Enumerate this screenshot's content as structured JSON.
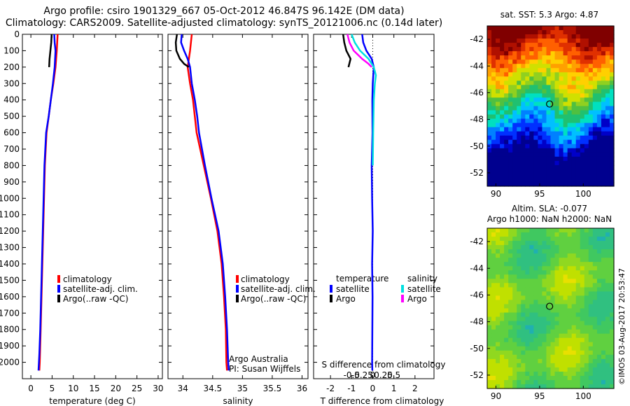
{
  "header": {
    "title_line1": "Argo profile: csiro 1901329_667 05-Oct-2012 46.847S 96.142E (DM data)",
    "title_line2": "Climatology: CARS2009. Satellite-adjusted climatology: synTS_20121006.nc (0.14d later)"
  },
  "colors": {
    "climatology": "#ff0000",
    "satellite": "#0000ff",
    "argo": "#000000",
    "sal_satellite": "#00e0e0",
    "sal_argo": "#ff00ff"
  },
  "chart_data": [
    {
      "type": "line",
      "xlabel": "temperature (deg C)",
      "xlim": [
        -2,
        31
      ],
      "ylim": [
        2100,
        0
      ],
      "x_ticks": [
        "0",
        "5",
        "10",
        "15",
        "20",
        "25",
        "30"
      ],
      "y_ticks": [
        "0",
        "100",
        "200",
        "300",
        "400",
        "500",
        "600",
        "700",
        "800",
        "900",
        "1000",
        "1100",
        "1200",
        "1300",
        "1400",
        "1500",
        "1600",
        "1700",
        "1800",
        "1900",
        "2000"
      ],
      "legend": [
        "climatology",
        "satellite-adj. clim.",
        "Argo(..raw -QC)"
      ],
      "series": [
        {
          "name": "climatology",
          "color": "#ff0000",
          "depth": [
            0,
            50,
            100,
            200,
            300,
            400,
            500,
            600,
            700,
            800,
            1000,
            1200,
            1400,
            1600,
            1800,
            2000,
            2050
          ],
          "values": [
            6.3,
            6.2,
            6.1,
            5.8,
            5.3,
            4.7,
            4.2,
            3.7,
            3.5,
            3.3,
            3.1,
            2.9,
            2.7,
            2.5,
            2.3,
            2.1,
            2.0
          ]
        },
        {
          "name": "satellite-adj. clim.",
          "color": "#0000ff",
          "depth": [
            0,
            50,
            100,
            200,
            300,
            400,
            500,
            600,
            700,
            800,
            1000,
            1200,
            1400,
            1600,
            1800,
            1950,
            2000,
            2050
          ],
          "values": [
            5.5,
            5.6,
            5.8,
            5.6,
            5.2,
            4.7,
            4.2,
            3.6,
            3.4,
            3.2,
            3.0,
            2.8,
            2.6,
            2.4,
            2.2,
            2.0,
            1.9,
            1.8
          ]
        },
        {
          "name": "Argo(..raw -QC)",
          "color": "#000000",
          "depth": [
            0,
            50,
            100,
            150,
            200
          ],
          "values": [
            4.9,
            4.8,
            4.6,
            4.4,
            4.3
          ]
        }
      ]
    },
    {
      "type": "line",
      "xlabel": "salinity",
      "xlim": [
        33.75,
        36.1
      ],
      "ylim": [
        2100,
        0
      ],
      "x_ticks": [
        "34",
        "34.5",
        "35",
        "35.5",
        "36"
      ],
      "legend": [
        "climatology",
        "satellite-adj. clim.",
        "Argo(..raw -QC)"
      ],
      "annotation": [
        "Argo Australia",
        "PI: Susan Wijffels"
      ],
      "series": [
        {
          "name": "climatology",
          "color": "#ff0000",
          "depth": [
            0,
            100,
            200,
            300,
            400,
            500,
            600,
            800,
            1000,
            1200,
            1400,
            1600,
            1800,
            2000,
            2050
          ],
          "values": [
            34.15,
            34.12,
            34.08,
            34.12,
            34.17,
            34.2,
            34.23,
            34.35,
            34.47,
            34.58,
            34.65,
            34.69,
            34.72,
            34.73,
            34.74
          ]
        },
        {
          "name": "satellite-adj. clim.",
          "color": "#0000ff",
          "depth": [
            0,
            50,
            100,
            150,
            200,
            300,
            400,
            500,
            600,
            800,
            1000,
            1200,
            1400,
            1600,
            1800,
            2000,
            2050
          ],
          "values": [
            33.98,
            33.97,
            34.02,
            34.08,
            34.12,
            34.15,
            34.2,
            34.24,
            34.27,
            34.37,
            34.48,
            34.6,
            34.67,
            34.71,
            34.74,
            34.76,
            34.77
          ]
        },
        {
          "name": "Argo(..raw -QC)",
          "color": "#000000",
          "depth": [
            0,
            50,
            100,
            150,
            180,
            200
          ],
          "values": [
            33.9,
            33.88,
            33.89,
            33.95,
            34.02,
            34.1
          ]
        }
      ]
    },
    {
      "type": "line",
      "xlabel": "T difference from climatology",
      "xlabel_top": "S difference from climatology",
      "xlim": [
        -2.8,
        2.9
      ],
      "ylim": [
        2100,
        0
      ],
      "x_ticks": [
        "-2",
        "-1",
        "0",
        "1",
        "2"
      ],
      "x_ticks_sal": [
        "-0.5",
        "-0.25",
        "0",
        "0.25",
        "0.5"
      ],
      "legend": {
        "temperature": [
          "satellite",
          "Argo"
        ],
        "salinity": [
          "satellite",
          "Argo"
        ]
      },
      "series": [
        {
          "name": "temperature satellite",
          "color": "#0000ff",
          "depth": [
            0,
            50,
            100,
            150,
            200,
            300,
            400,
            600,
            800,
            1000,
            1200,
            1400,
            1600,
            1800,
            2000,
            2050
          ],
          "values": [
            -0.5,
            -0.45,
            -0.3,
            -0.05,
            0.05,
            0.0,
            -0.02,
            -0.01,
            -0.05,
            -0.03,
            0.0,
            -0.03,
            -0.01,
            -0.02,
            -0.03,
            -0.02
          ]
        },
        {
          "name": "temperature Argo",
          "color": "#000000",
          "depth": [
            0,
            50,
            100,
            150,
            200
          ],
          "values": [
            -1.4,
            -1.35,
            -1.25,
            -1.05,
            -1.15
          ]
        },
        {
          "name": "salinity satellite",
          "color": "#00e0e0",
          "depth": [
            0,
            50,
            100,
            150,
            200,
            250,
            300,
            400,
            600,
            800
          ],
          "values": [
            -1.0,
            -0.85,
            -0.6,
            -0.2,
            0.05,
            0.15,
            0.1,
            0.05,
            0.02,
            0.0
          ]
        },
        {
          "name": "salinity Argo",
          "color": "#ff00ff",
          "depth": [
            0,
            50,
            100,
            150,
            180,
            200
          ],
          "values": [
            -1.2,
            -1.1,
            -0.9,
            -0.5,
            -0.2,
            -0.05
          ]
        }
      ]
    },
    {
      "type": "heatmap",
      "title": "sat. SST: 5.3 Argo: 4.87",
      "xlim": [
        89,
        103.5
      ],
      "ylim": [
        -53,
        -41
      ],
      "x_ticks": [
        "90",
        "95",
        "100"
      ],
      "y_ticks": [
        "-42",
        "-44",
        "-46",
        "-48",
        "-50",
        "-52"
      ],
      "marker": {
        "lon": 96.142,
        "lat": -46.847
      }
    },
    {
      "type": "heatmap",
      "title_line1": "Altim. SLA: -0.077",
      "title_line2": "Argo h1000: NaN h2000: NaN",
      "xlim": [
        89,
        103.5
      ],
      "ylim": [
        -53,
        -41
      ],
      "x_ticks": [
        "90",
        "95",
        "100"
      ],
      "y_ticks": [
        "-42",
        "-44",
        "-46",
        "-48",
        "-50",
        "-52"
      ],
      "marker": {
        "lon": 96.142,
        "lat": -46.847
      }
    }
  ],
  "footer": {
    "stamp": "©IMOS 03-Aug-2017 20:53:47"
  }
}
